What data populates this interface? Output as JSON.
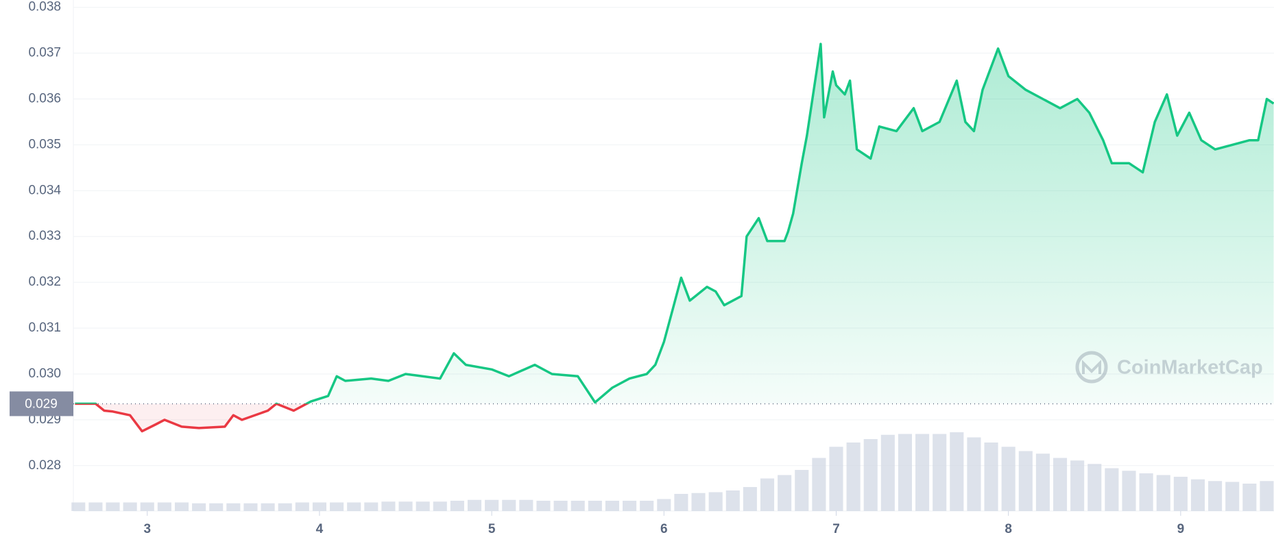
{
  "chart_data": {
    "type": "line",
    "x": [
      2.58,
      2.7,
      2.75,
      2.8,
      2.9,
      2.97,
      3.05,
      3.1,
      3.2,
      3.3,
      3.45,
      3.5,
      3.55,
      3.7,
      3.75,
      3.85,
      3.95,
      4.05,
      4.1,
      4.15,
      4.3,
      4.4,
      4.5,
      4.7,
      4.78,
      4.85,
      5.0,
      5.1,
      5.25,
      5.35,
      5.5,
      5.6,
      5.7,
      5.8,
      5.9,
      5.95,
      6.0,
      6.05,
      6.1,
      6.15,
      6.25,
      6.3,
      6.35,
      6.45,
      6.48,
      6.55,
      6.6,
      6.7,
      6.72,
      6.75,
      6.8,
      6.83,
      6.91,
      6.93,
      6.98,
      7.0,
      7.05,
      7.08,
      7.12,
      7.2,
      7.25,
      7.35,
      7.45,
      7.5,
      7.6,
      7.7,
      7.75,
      7.8,
      7.85,
      7.94,
      8.0,
      8.1,
      8.2,
      8.3,
      8.4,
      8.47,
      8.55,
      8.6,
      8.7,
      8.78,
      8.85,
      8.92,
      8.98,
      9.05,
      9.12,
      9.2,
      9.3,
      9.4,
      9.45,
      9.5,
      9.54
    ],
    "values": [
      0.02935,
      0.02935,
      0.0292,
      0.02918,
      0.0291,
      0.02875,
      0.0289,
      0.029,
      0.02885,
      0.02882,
      0.02885,
      0.0291,
      0.029,
      0.0292,
      0.02935,
      0.0292,
      0.0294,
      0.02952,
      0.02995,
      0.02985,
      0.0299,
      0.02985,
      0.03,
      0.0299,
      0.03045,
      0.0302,
      0.0301,
      0.02995,
      0.0302,
      0.03,
      0.02995,
      0.02938,
      0.0297,
      0.0299,
      0.03,
      0.0302,
      0.0307,
      0.0314,
      0.0321,
      0.0316,
      0.0319,
      0.0318,
      0.0315,
      0.0317,
      0.033,
      0.0334,
      0.0329,
      0.0329,
      0.0331,
      0.0335,
      0.0346,
      0.0352,
      0.0372,
      0.0356,
      0.0366,
      0.0363,
      0.0361,
      0.0364,
      0.0349,
      0.0347,
      0.0354,
      0.0353,
      0.0358,
      0.0353,
      0.0355,
      0.0364,
      0.0355,
      0.0353,
      0.0362,
      0.0371,
      0.0365,
      0.0362,
      0.036,
      0.0358,
      0.036,
      0.0357,
      0.0351,
      0.0346,
      0.0346,
      0.0344,
      0.0355,
      0.0361,
      0.0352,
      0.0357,
      0.0351,
      0.0349,
      0.035,
      0.0351,
      0.0351,
      0.036,
      0.0359
    ],
    "color": "#16c784",
    "down_color": "#ea3943",
    "reference": {
      "value": 0.02935,
      "label": "0.029"
    },
    "volume": {
      "color": "#cfd5e2",
      "x": [
        2.6,
        2.7,
        2.8,
        2.9,
        3.0,
        3.1,
        3.2,
        3.3,
        3.4,
        3.5,
        3.6,
        3.7,
        3.8,
        3.9,
        4.0,
        4.1,
        4.2,
        4.3,
        4.4,
        4.5,
        4.6,
        4.7,
        4.8,
        4.9,
        5.0,
        5.1,
        5.2,
        5.3,
        5.4,
        5.5,
        5.6,
        5.7,
        5.8,
        5.9,
        6.0,
        6.1,
        6.2,
        6.3,
        6.4,
        6.5,
        6.6,
        6.7,
        6.8,
        6.9,
        7.0,
        7.1,
        7.2,
        7.3,
        7.4,
        7.5,
        7.6,
        7.7,
        7.8,
        7.9,
        8.0,
        8.1,
        8.2,
        8.3,
        8.4,
        8.5,
        8.6,
        8.7,
        8.8,
        8.9,
        9.0,
        9.1,
        9.2,
        9.3,
        9.4,
        9.5
      ],
      "values": [
        10,
        10,
        10,
        10,
        10,
        10,
        10,
        9,
        9,
        9,
        9,
        9,
        9,
        10,
        10,
        10,
        10,
        10,
        11,
        11,
        11,
        11,
        12,
        13,
        13,
        13,
        13,
        12,
        12,
        12,
        12,
        12,
        12,
        12,
        14,
        20,
        21,
        22,
        24,
        28,
        38,
        42,
        48,
        62,
        75,
        80,
        84,
        89,
        90,
        90,
        90,
        92,
        86,
        80,
        75,
        70,
        67,
        62,
        59,
        55,
        50,
        47,
        44,
        42,
        40,
        37,
        35,
        34,
        32,
        35
      ]
    },
    "xlim": [
      2.571,
      9.542
    ],
    "xticks": [
      3,
      4,
      5,
      6,
      7,
      8,
      9
    ],
    "ylim": [
      0.02701,
      0.03816
    ],
    "yticks": [
      0.028,
      0.029,
      {
        "value": 0.03,
        "label": "0.030"
      },
      0.031,
      0.032,
      0.033,
      0.034,
      0.035,
      0.036,
      0.037,
      0.038
    ],
    "grid": true,
    "watermark": "CoinMarketCap"
  }
}
